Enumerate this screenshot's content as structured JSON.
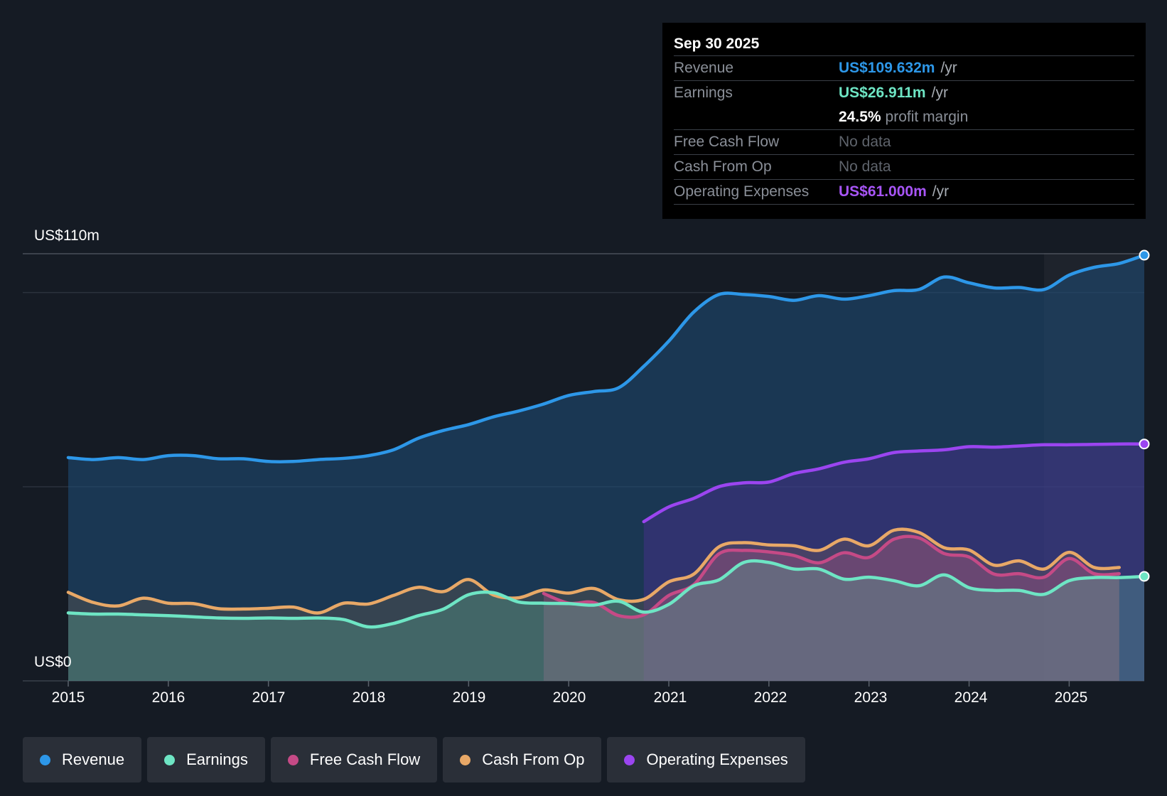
{
  "tooltip": {
    "date": "Sep 30 2025",
    "revenue_label": "Revenue",
    "revenue_value": "US$109.632m",
    "earnings_label": "Earnings",
    "earnings_value": "US$26.911m",
    "margin_value": "24.5%",
    "margin_label": "profit margin",
    "fcf_label": "Free Cash Flow",
    "fcf_value": "No data",
    "cfo_label": "Cash From Op",
    "cfo_value": "No data",
    "opex_label": "Operating Expenses",
    "opex_value": "US$61.000m",
    "unit": "/yr"
  },
  "colors": {
    "revenue": "#2d97e8",
    "earnings": "#6ee5c4",
    "fcf": "#c54a86",
    "cfo": "#e8a867",
    "opex": "#9b45f0"
  },
  "legend": [
    {
      "label": "Revenue",
      "color": "#2d97e8"
    },
    {
      "label": "Earnings",
      "color": "#6ee5c4"
    },
    {
      "label": "Free Cash Flow",
      "color": "#c54a86"
    },
    {
      "label": "Cash From Op",
      "color": "#e8a867"
    },
    {
      "label": "Operating Expenses",
      "color": "#9b45f0"
    }
  ],
  "chart_data": {
    "type": "area",
    "title": "",
    "y_axis_labels": {
      "top": "US$110m",
      "bottom": "US$0"
    },
    "ylim": [
      0,
      110
    ],
    "xlim": [
      2015.0,
      2025.75
    ],
    "x_ticks": [
      "2015",
      "2016",
      "2017",
      "2018",
      "2019",
      "2020",
      "2021",
      "2022",
      "2023",
      "2024",
      "2025"
    ],
    "series": [
      {
        "name": "Revenue",
        "x": [
          2015.0,
          2015.25,
          2015.5,
          2015.75,
          2016.0,
          2016.25,
          2016.5,
          2016.75,
          2017.0,
          2017.25,
          2017.5,
          2017.75,
          2018.0,
          2018.25,
          2018.5,
          2018.75,
          2019.0,
          2019.25,
          2019.5,
          2019.75,
          2020.0,
          2020.25,
          2020.5,
          2020.75,
          2021.0,
          2021.25,
          2021.5,
          2021.75,
          2022.0,
          2022.25,
          2022.5,
          2022.75,
          2023.0,
          2023.25,
          2023.5,
          2023.75,
          2024.0,
          2024.25,
          2024.5,
          2024.75,
          2025.0,
          2025.25,
          2025.5,
          2025.75
        ],
        "values": [
          57.5,
          57,
          57.5,
          57,
          58,
          58,
          57.2,
          57.2,
          56.5,
          56.5,
          57,
          57.3,
          58,
          59.5,
          62.5,
          64.5,
          66,
          68,
          69.5,
          71.3,
          73.5,
          74.5,
          75.5,
          81,
          87.5,
          95,
          99.5,
          99.5,
          99,
          98,
          99.2,
          98.3,
          99.2,
          100.5,
          100.8,
          104,
          102.5,
          101.2,
          101.3,
          100.8,
          104.5,
          106.5,
          107.5,
          109.632
        ]
      },
      {
        "name": "Earnings",
        "x": [
          2015.0,
          2015.25,
          2015.5,
          2015.75,
          2016.0,
          2016.25,
          2016.5,
          2016.75,
          2017.0,
          2017.25,
          2017.5,
          2017.75,
          2018.0,
          2018.25,
          2018.5,
          2018.75,
          2019.0,
          2019.25,
          2019.5,
          2019.75,
          2020.0,
          2020.25,
          2020.5,
          2020.75,
          2021.0,
          2021.25,
          2021.5,
          2021.75,
          2022.0,
          2022.25,
          2022.5,
          2022.75,
          2023.0,
          2023.25,
          2023.5,
          2023.75,
          2024.0,
          2024.25,
          2024.5,
          2024.75,
          2025.0,
          2025.25,
          2025.5,
          2025.75
        ],
        "values": [
          17.5,
          17.2,
          17.2,
          17.0,
          16.8,
          16.5,
          16.2,
          16.1,
          16.2,
          16.1,
          16.2,
          15.8,
          13.9,
          14.8,
          16.8,
          18.5,
          22.2,
          22.7,
          20.3,
          20,
          19.9,
          19.5,
          20.5,
          17.7,
          19.7,
          24.5,
          26,
          30.5,
          30.5,
          28.8,
          28.8,
          26.2,
          26.7,
          25.8,
          24.5,
          27.3,
          24,
          23.3,
          23.3,
          22.3,
          25.8,
          26.6,
          26.6,
          26.911
        ]
      },
      {
        "name": "Free Cash Flow",
        "x": [
          2019.75,
          2020.0,
          2020.25,
          2020.5,
          2020.75,
          2021.0,
          2021.25,
          2021.5,
          2021.75,
          2022.0,
          2022.25,
          2022.5,
          2022.75,
          2023.0,
          2023.25,
          2023.5,
          2023.75,
          2024.0,
          2024.25,
          2024.5,
          2024.75,
          2025.0,
          2025.25,
          2025.5
        ],
        "values": [
          22.5,
          20,
          20.2,
          16.8,
          17,
          22,
          24.8,
          32.7,
          33.6,
          33.2,
          32.3,
          30.4,
          33,
          31.8,
          36.5,
          36.8,
          32.8,
          31.9,
          27.5,
          27.6,
          26.7,
          31.5,
          27.6,
          27.6
        ]
      },
      {
        "name": "Cash From Op",
        "x": [
          2015.0,
          2015.25,
          2015.5,
          2015.75,
          2016.0,
          2016.25,
          2016.5,
          2016.75,
          2017.0,
          2017.25,
          2017.5,
          2017.75,
          2018.0,
          2018.25,
          2018.5,
          2018.75,
          2019.0,
          2019.25,
          2019.5,
          2019.75,
          2020.0,
          2020.25,
          2020.5,
          2020.75,
          2021.0,
          2021.25,
          2021.5,
          2021.75,
          2022.0,
          2022.25,
          2022.5,
          2022.75,
          2023.0,
          2023.25,
          2023.5,
          2023.75,
          2024.0,
          2024.25,
          2024.5,
          2024.75,
          2025.0,
          2025.25,
          2025.5
        ],
        "values": [
          22.8,
          20.2,
          19.3,
          21.3,
          20,
          19.9,
          18.6,
          18.5,
          18.7,
          19,
          17.5,
          20,
          19.8,
          22,
          24.1,
          23,
          26.1,
          22.1,
          21.4,
          23.4,
          22.6,
          23.8,
          20.9,
          21,
          25.5,
          27.5,
          34.5,
          35.6,
          35,
          34.8,
          33.6,
          36.5,
          34.8,
          38.8,
          38.2,
          34.3,
          33.7,
          29.8,
          30.9,
          28.8,
          33.1,
          29.2,
          29.2
        ]
      },
      {
        "name": "Operating Expenses",
        "x": [
          2020.75,
          2021.0,
          2021.25,
          2021.5,
          2021.75,
          2022.0,
          2022.25,
          2022.5,
          2022.75,
          2023.0,
          2023.25,
          2023.5,
          2023.75,
          2024.0,
          2024.25,
          2024.5,
          2024.75,
          2025.0,
          2025.25,
          2025.5,
          2025.75
        ],
        "values": [
          41,
          44.8,
          47,
          50,
          51,
          51.2,
          53.4,
          54.6,
          56.3,
          57.2,
          58.8,
          59.2,
          59.5,
          60.3,
          60.2,
          60.5,
          60.8,
          60.8,
          60.9,
          61.0,
          61.0
        ]
      }
    ]
  }
}
